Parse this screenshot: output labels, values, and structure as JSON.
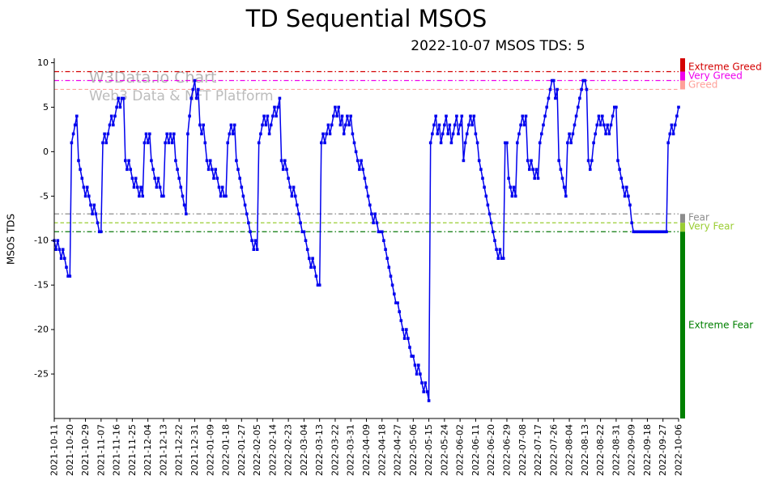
{
  "title": "TD Sequential MSOS",
  "subtitle": "2022-10-07 MSOS TDS: 5",
  "watermark": {
    "line1": "W3Data.io Chart",
    "line2": "Web3 Data & NFT Platform"
  },
  "chart_data": {
    "type": "line",
    "title": "TD Sequential MSOS",
    "ylabel": "MSOS TDS",
    "ylim": [
      -30,
      10.5
    ],
    "yticks": [
      10,
      5,
      0,
      -5,
      -10,
      -15,
      -20,
      -25
    ],
    "grid": false,
    "legend": "none",
    "x_tick_interval_days": 9,
    "x_tick_labels": [
      "2021-10-11",
      "2021-10-20",
      "2021-10-29",
      "2021-11-07",
      "2021-11-16",
      "2021-11-25",
      "2021-12-04",
      "2021-12-13",
      "2021-12-22",
      "2021-12-31",
      "2022-01-09",
      "2022-01-18",
      "2022-01-27",
      "2022-02-05",
      "2022-02-14",
      "2022-02-23",
      "2022-03-04",
      "2022-03-13",
      "2022-03-22",
      "2022-03-31",
      "2022-04-09",
      "2022-04-18",
      "2022-04-27",
      "2022-05-06",
      "2022-05-15",
      "2022-05-24",
      "2022-06-02",
      "2022-06-11",
      "2022-06-20",
      "2022-06-29",
      "2022-07-08",
      "2022-07-17",
      "2022-07-26",
      "2022-08-04",
      "2022-08-13",
      "2022-08-22",
      "2022-08-31",
      "2022-09-09",
      "2022-09-18",
      "2022-09-27",
      "2022-10-06"
    ],
    "series": [
      {
        "name": "MSOS TDS",
        "color": "#0000ee",
        "marker": "square",
        "values": [
          -10,
          -11,
          -10,
          -11,
          -12,
          -11,
          -12,
          -13,
          -14,
          -14,
          1,
          2,
          3,
          4,
          -1,
          -2,
          -3,
          -4,
          -5,
          -4,
          -5,
          -6,
          -7,
          -6,
          -7,
          -8,
          -9,
          -9,
          1,
          2,
          1,
          2,
          3,
          4,
          3,
          4,
          5,
          6,
          5,
          6,
          6,
          -1,
          -2,
          -1,
          -2,
          -3,
          -4,
          -3,
          -4,
          -5,
          -4,
          -5,
          1,
          2,
          1,
          2,
          -1,
          -2,
          -3,
          -4,
          -3,
          -4,
          -5,
          -5,
          1,
          2,
          1,
          2,
          1,
          2,
          -1,
          -2,
          -3,
          -4,
          -5,
          -6,
          -7,
          2,
          4,
          6,
          7,
          8,
          6,
          7,
          3,
          2,
          3,
          1,
          -1,
          -2,
          -1,
          -2,
          -3,
          -2,
          -3,
          -4,
          -5,
          -4,
          -5,
          -5,
          1,
          2,
          3,
          2,
          3,
          -1,
          -2,
          -3,
          -4,
          -5,
          -6,
          -7,
          -8,
          -9,
          -10,
          -11,
          -10,
          -11,
          1,
          2,
          3,
          4,
          3,
          4,
          2,
          3,
          4,
          5,
          4,
          5,
          6,
          -1,
          -2,
          -1,
          -2,
          -3,
          -4,
          -5,
          -4,
          -5,
          -6,
          -7,
          -8,
          -9,
          -9,
          -10,
          -11,
          -12,
          -13,
          -12,
          -13,
          -14,
          -15,
          -15,
          1,
          2,
          1,
          2,
          3,
          2,
          3,
          4,
          5,
          4,
          5,
          3,
          4,
          2,
          3,
          4,
          3,
          4,
          2,
          1,
          0,
          -1,
          -2,
          -1,
          -2,
          -3,
          -4,
          -5,
          -6,
          -7,
          -8,
          -7,
          -8,
          -9,
          -9,
          -9,
          -10,
          -11,
          -12,
          -13,
          -14,
          -15,
          -16,
          -17,
          -17,
          -18,
          -19,
          -20,
          -21,
          -20,
          -21,
          -22,
          -23,
          -23,
          -24,
          -25,
          -24,
          -25,
          -26,
          -27,
          -26,
          -27,
          -28,
          1,
          2,
          3,
          4,
          2,
          3,
          1,
          2,
          3,
          4,
          2,
          3,
          1,
          2,
          3,
          4,
          2,
          3,
          4,
          -1,
          1,
          2,
          3,
          4,
          3,
          4,
          2,
          1,
          -1,
          -2,
          -3,
          -4,
          -5,
          -6,
          -7,
          -8,
          -9,
          -10,
          -11,
          -12,
          -11,
          -12,
          -12,
          1,
          1,
          -3,
          -4,
          -5,
          -4,
          -5,
          1,
          2,
          3,
          4,
          3,
          4,
          -1,
          -2,
          -1,
          -2,
          -3,
          -2,
          -3,
          1,
          2,
          3,
          4,
          5,
          6,
          7,
          8,
          8,
          6,
          7,
          -1,
          -2,
          -3,
          -4,
          -5,
          1,
          2,
          1,
          2,
          3,
          4,
          5,
          6,
          7,
          8,
          8,
          7,
          -1,
          -2,
          -1,
          1,
          2,
          3,
          4,
          3,
          4,
          3,
          2,
          3,
          2,
          3,
          4,
          5,
          5,
          -1,
          -2,
          -3,
          -4,
          -5,
          -4,
          -5,
          -6,
          -8,
          -9,
          -9,
          -9,
          -9,
          -9,
          -9,
          -9,
          -9,
          -9,
          -9,
          -9,
          -9,
          -9,
          -9,
          -9,
          -9,
          -9,
          -9,
          -9,
          -9,
          1,
          2,
          3,
          2,
          3,
          4,
          5
        ]
      }
    ],
    "thresholds": [
      {
        "value": 9,
        "label": "Extreme Greed",
        "color": "#d40000",
        "style": "dashdot"
      },
      {
        "value": 8,
        "label": "Very Greed",
        "color": "#ee00ee",
        "style": "dashdot"
      },
      {
        "value": 7,
        "label": "Greed",
        "color": "#ffa099",
        "style": "dashed"
      },
      {
        "value": -7,
        "label": "Fear",
        "color": "#8c8c8c",
        "style": "dashdot"
      },
      {
        "value": -8,
        "label": "Very Fear",
        "color": "#9acd32",
        "style": "dashed"
      },
      {
        "value": -9,
        "label": "",
        "color": "#0b7a0b",
        "style": "dashdot"
      }
    ],
    "zones": [
      {
        "from": 9,
        "to": 10.5,
        "color": "#d40000",
        "label": ""
      },
      {
        "from": 8,
        "to": 9,
        "color": "#ee00ee",
        "label": ""
      },
      {
        "from": 7,
        "to": 8,
        "color": "#ffa099",
        "label": ""
      },
      {
        "from": -8,
        "to": -7,
        "color": "#8c8c8c",
        "label": ""
      },
      {
        "from": -9,
        "to": -8,
        "color": "#9acd32",
        "label": ""
      },
      {
        "from": -30,
        "to": -9,
        "color": "#008000",
        "label": "Extreme Fear"
      }
    ]
  }
}
